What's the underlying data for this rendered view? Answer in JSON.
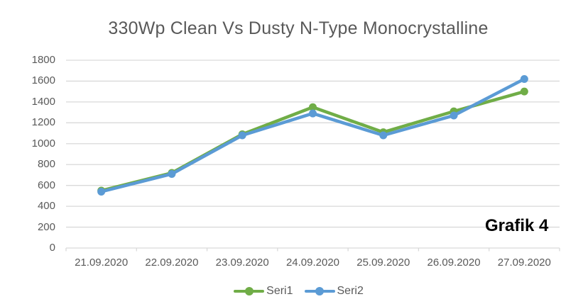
{
  "title": "330Wp Clean Vs Dusty N-Type Monocrystalline",
  "annotation": "Grafik 4",
  "chart_data": {
    "type": "line",
    "title": "330Wp Clean Vs Dusty N-Type Monocrystalline",
    "categories": [
      "21.09.2020",
      "22.09.2020",
      "23.09.2020",
      "24.09.2020",
      "25.09.2020",
      "26.09.2020",
      "27.09.2020"
    ],
    "series": [
      {
        "name": "Seri1",
        "color": "#70AD47",
        "marker": "circle",
        "values": [
          550,
          720,
          1090,
          1350,
          1110,
          1310,
          1500
        ]
      },
      {
        "name": "Seri2",
        "color": "#5B9BD5",
        "marker": "circle",
        "values": [
          540,
          710,
          1080,
          1290,
          1080,
          1270,
          1620
        ]
      }
    ],
    "xlabel": "",
    "ylabel": "",
    "ylim": [
      0,
      1800
    ],
    "yticks": [
      0,
      200,
      400,
      600,
      800,
      1000,
      1200,
      1400,
      1600,
      1800
    ],
    "grid": true,
    "legend_position": "bottom",
    "annotation": "Grafik 4"
  },
  "colors": {
    "title_text": "#595959",
    "axis_text": "#595959",
    "grid": "#D9D9D9",
    "annotation_text": "#000000",
    "series1": "#70AD47",
    "series2": "#5B9BD5",
    "background": "#FFFFFF"
  }
}
